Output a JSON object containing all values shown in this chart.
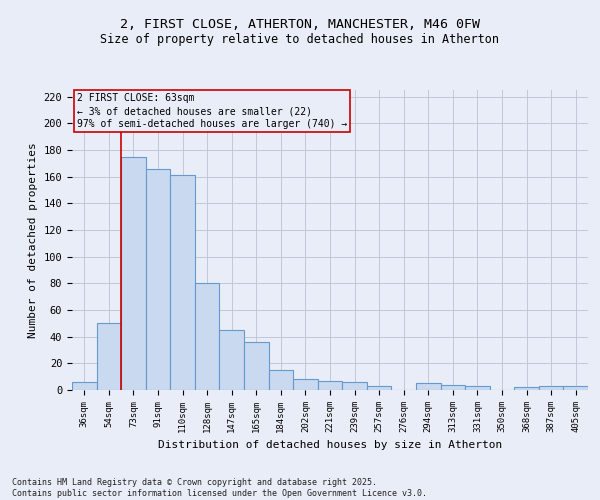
{
  "title_line1": "2, FIRST CLOSE, ATHERTON, MANCHESTER, M46 0FW",
  "title_line2": "Size of property relative to detached houses in Atherton",
  "xlabel": "Distribution of detached houses by size in Atherton",
  "ylabel": "Number of detached properties",
  "footer": "Contains HM Land Registry data © Crown copyright and database right 2025.\nContains public sector information licensed under the Open Government Licence v3.0.",
  "categories": [
    "36sqm",
    "54sqm",
    "73sqm",
    "91sqm",
    "110sqm",
    "128sqm",
    "147sqm",
    "165sqm",
    "184sqm",
    "202sqm",
    "221sqm",
    "239sqm",
    "257sqm",
    "276sqm",
    "294sqm",
    "313sqm",
    "331sqm",
    "350sqm",
    "368sqm",
    "387sqm",
    "405sqm"
  ],
  "values": [
    6,
    50,
    175,
    166,
    161,
    80,
    45,
    36,
    15,
    8,
    7,
    6,
    3,
    0,
    5,
    4,
    3,
    0,
    2,
    3,
    3
  ],
  "bar_color": "#c9d9f0",
  "bar_edge_color": "#6699cc",
  "grid_color": "#c0c8d8",
  "bg_color": "#e8edf7",
  "vline_x": 1.5,
  "vline_color": "#cc0000",
  "annotation_text": "2 FIRST CLOSE: 63sqm\n← 3% of detached houses are smaller (22)\n97% of semi-detached houses are larger (740) →",
  "annotation_box_color": "#cc0000",
  "ylim": [
    0,
    225
  ],
  "yticks": [
    0,
    20,
    40,
    60,
    80,
    100,
    120,
    140,
    160,
    180,
    200,
    220
  ]
}
